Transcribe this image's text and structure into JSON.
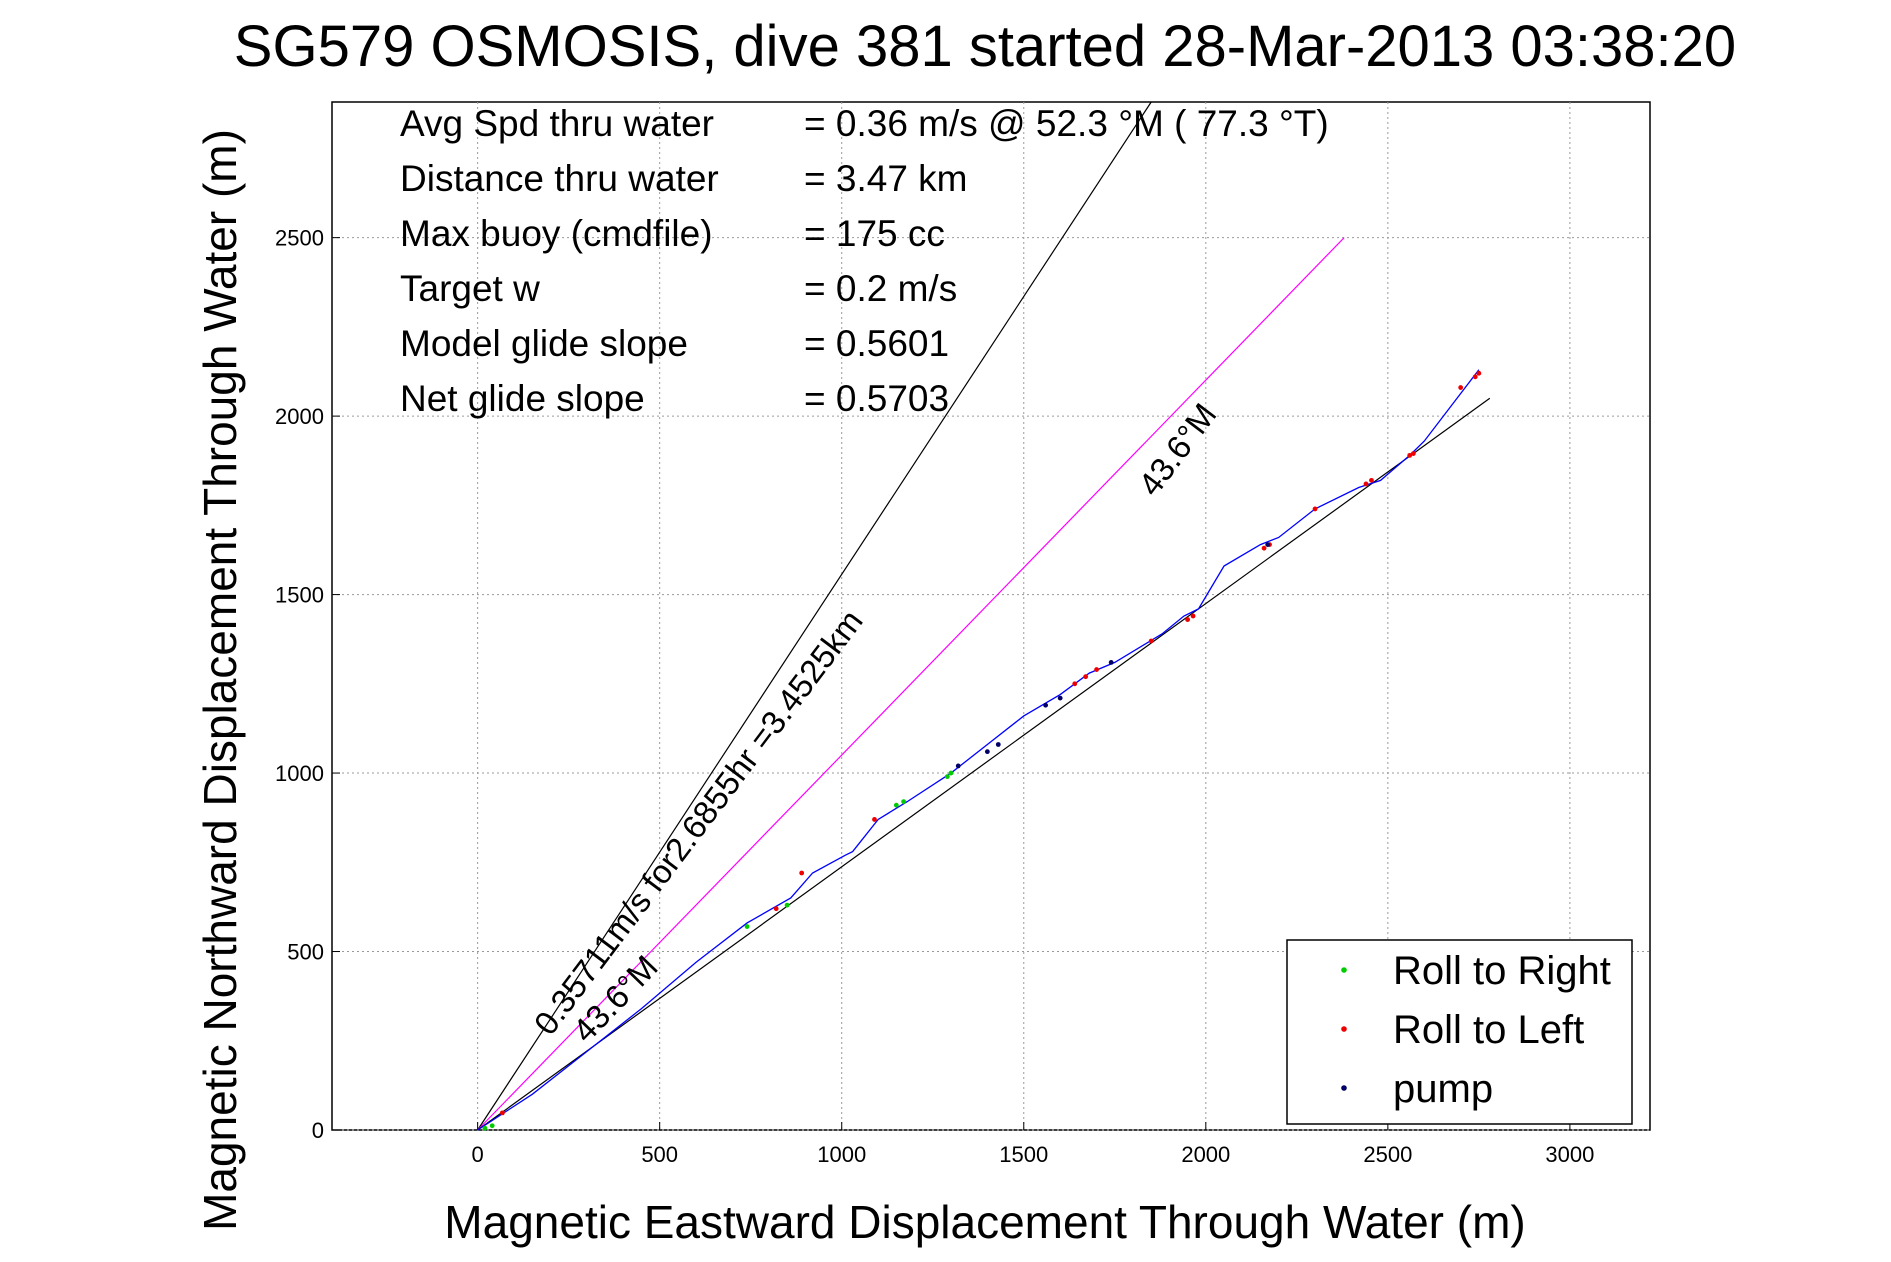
{
  "chart_data": {
    "type": "line",
    "title": "SG579 OSMOSIS, dive 381 started 28-Mar-2013 03:38:20",
    "xlabel": "Magnetic Eastward Displacement Through Water (m)",
    "ylabel": "Magnetic Northward Displacement Through Water (m)",
    "xlim": [
      -400,
      3220
    ],
    "ylim": [
      0,
      2880
    ],
    "xticks": [
      0,
      500,
      1000,
      1500,
      2000,
      2500,
      3000
    ],
    "yticks": [
      0,
      500,
      1000,
      1500,
      2000,
      2500
    ],
    "grid": true,
    "legend_position": "bottom-right",
    "info_lines": [
      {
        "label": "Avg Spd thru water",
        "value": "=  0.36 m/s @  52.3 °M ( 77.3 °T)"
      },
      {
        "label": "Distance thru water",
        "value": "=  3.47 km"
      },
      {
        "label": "Max buoy (cmdfile)",
        "value": "= 175 cc"
      },
      {
        "label": "Target w",
        "value": "= 0.2 m/s"
      },
      {
        "label": "Model glide slope",
        "value": "= 0.5601"
      },
      {
        "label": "Net glide slope",
        "value": "= 0.5703"
      }
    ],
    "annotations": [
      {
        "text": "0.35711m/s for2.6855hr =3.4525km",
        "x": 200,
        "y": 260,
        "angle_deg": 53
      },
      {
        "text": "43.6°M",
        "x": 300,
        "y": 240,
        "angle_deg": 46
      },
      {
        "text": "43.6°M",
        "x": 1860,
        "y": 1770,
        "angle_deg": 53
      }
    ],
    "reference_lines": [
      {
        "name": "black-steep",
        "color": "#000000",
        "x": [
          0,
          1850
        ],
        "y": [
          0,
          2880
        ]
      },
      {
        "name": "magenta",
        "color": "#ff00ff",
        "x": [
          0,
          2380
        ],
        "y": [
          0,
          2500
        ]
      },
      {
        "name": "black-heading",
        "color": "#000000",
        "x": [
          0,
          2780
        ],
        "y": [
          0,
          2050
        ]
      }
    ],
    "track": {
      "color": "#0000ff",
      "x": [
        0,
        60,
        150,
        300,
        450,
        600,
        740,
        860,
        920,
        1010,
        1030,
        1100,
        1180,
        1300,
        1400,
        1500,
        1600,
        1680,
        1750,
        1880,
        1940,
        1980,
        2050,
        2150,
        2200,
        2300,
        2420,
        2480,
        2560,
        2600,
        2690,
        2750
      ],
      "y": [
        0,
        40,
        100,
        220,
        340,
        470,
        580,
        650,
        720,
        770,
        780,
        870,
        920,
        1000,
        1080,
        1160,
        1220,
        1280,
        1310,
        1390,
        1440,
        1460,
        1580,
        1640,
        1660,
        1740,
        1800,
        1820,
        1890,
        1930,
        2050,
        2130
      ]
    },
    "series": [
      {
        "name": "Roll to Right",
        "color": "#00cc00",
        "x": [
          20,
          40,
          740,
          850,
          1150,
          1170,
          1290,
          1300
        ],
        "y": [
          5,
          12,
          570,
          630,
          910,
          920,
          990,
          1000
        ]
      },
      {
        "name": "Roll to Left",
        "color": "#ee0000",
        "x": [
          68,
          820,
          890,
          1090,
          1640,
          1670,
          1700,
          1850,
          1950,
          1965,
          2160,
          2175,
          2300,
          2440,
          2455,
          2560,
          2570,
          2700,
          2740,
          2750
        ],
        "y": [
          48,
          620,
          720,
          870,
          1250,
          1270,
          1290,
          1370,
          1430,
          1440,
          1630,
          1640,
          1740,
          1810,
          1820,
          1890,
          1895,
          2080,
          2110,
          2120
        ]
      },
      {
        "name": "pump",
        "color": "#000066",
        "x": [
          1320,
          1400,
          1430,
          1560,
          1600,
          1740,
          2170
        ],
        "y": [
          1020,
          1060,
          1080,
          1190,
          1210,
          1310,
          1640
        ]
      }
    ]
  }
}
